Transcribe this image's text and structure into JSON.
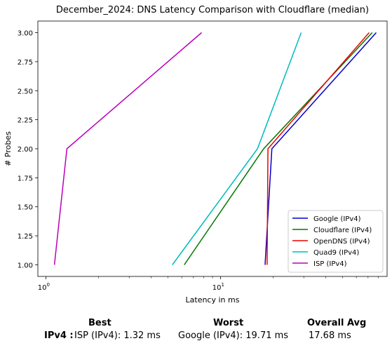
{
  "chart_data": {
    "type": "line",
    "title": "December_2024: DNS Latency Comparison with Cloudflare (median)",
    "xlabel": "Latency in ms",
    "ylabel": "# Probes",
    "xscale": "log",
    "xlim": [
      0.9,
      90
    ],
    "ylim": [
      0.9,
      3.1
    ],
    "xticks": [
      {
        "value": 1,
        "base": "10",
        "exp": "0"
      },
      {
        "value": 10,
        "base": "10",
        "exp": "1"
      }
    ],
    "yticks": [
      "1.00",
      "1.25",
      "1.50",
      "1.75",
      "2.00",
      "2.25",
      "2.50",
      "2.75",
      "3.00"
    ],
    "grid": false,
    "legend_position": "lower-right",
    "series": [
      {
        "name": "Google (IPv4)",
        "color": "#0000cc",
        "x": [
          18.0,
          19.7,
          78.0
        ],
        "y": [
          1,
          2,
          3
        ]
      },
      {
        "name": "Cloudflare (IPv4)",
        "color": "#007700",
        "x": [
          6.2,
          17.68,
          74.0
        ],
        "y": [
          1,
          2,
          3
        ]
      },
      {
        "name": "OpenDNS (IPv4)",
        "color": "#ee0000",
        "x": [
          18.5,
          18.7,
          71.0
        ],
        "y": [
          1,
          2,
          3
        ]
      },
      {
        "name": "Quad9 (IPv4)",
        "color": "#00bbbb",
        "x": [
          5.3,
          16.3,
          29.0
        ],
        "y": [
          1,
          2,
          3
        ]
      },
      {
        "name": "ISP (IPv4)",
        "color": "#bb00bb",
        "x": [
          1.12,
          1.32,
          7.8
        ],
        "y": [
          1,
          2,
          3
        ]
      }
    ]
  },
  "summary": {
    "headers": {
      "best": "Best",
      "worst": "Worst",
      "overall": "Overall Avg"
    },
    "row_label": "IPv4 :",
    "best": "ISP (IPv4): 1.32 ms",
    "worst": "Google (IPv4): 19.71 ms",
    "overall": "17.68 ms"
  }
}
